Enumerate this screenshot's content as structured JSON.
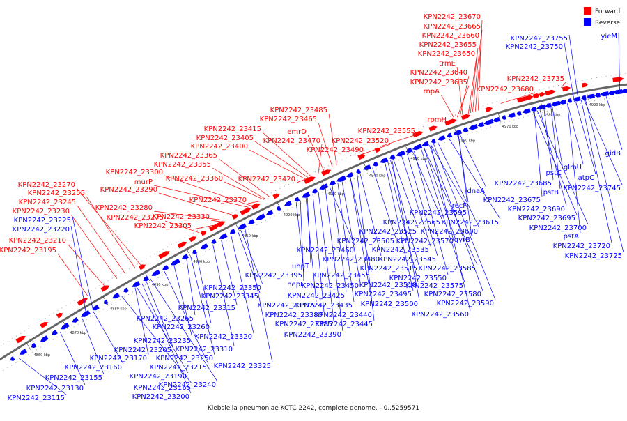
{
  "colors": {
    "forward": "#ff0000",
    "reverse": "#0000ff",
    "axis": "#555555",
    "text": "#111111",
    "background": "#ffffff"
  },
  "legend": {
    "forward_label": "Forward",
    "reverse_label": "Reverse"
  },
  "caption": "Klebsiella pneumoniae KCTC 2242, complete genome. - 0..5259571",
  "ticks": [
    "4860 kbp",
    "4870 kbp",
    "4880 kbp",
    "4890 kbp",
    "4900 kbp",
    "4910 kbp",
    "4920 kbp",
    "4930 kbp",
    "4940 kbp",
    "4950 kbp",
    "4960 kbp",
    "4970 kbp",
    "4980 kbp",
    "4990 kbp"
  ],
  "forward_genes": [
    "KPN2242_23670",
    "KPN2242_23665",
    "KPN2242_23660",
    "KPN2242_23655",
    "KPN2242_23650",
    "trmE",
    "KPN2242_23640",
    "KPN2242_23635",
    "rnpA",
    "KPN2242_23680",
    "KPN2242_23735",
    "rpmH",
    "KPN2242_23485",
    "KPN2242_23465",
    "KPN2242_23415",
    "emrD",
    "KPN2242_23405",
    "KPN2242_23470",
    "KPN2242_23400",
    "KPN2242_23490",
    "KPN2242_23555",
    "KPN2242_23520",
    "KPN2242_23365",
    "KPN2242_23355",
    "KPN2242_23300",
    "murP",
    "KPN2242_23360",
    "KPN2242_23420",
    "KPN2242_23270",
    "KPN2242_23290",
    "KPN2242_23255",
    "KPN2242_23245",
    "KPN2242_23280",
    "KPN2242_23230",
    "KPN2242_23275",
    "KPN2242_23370",
    "KPN2242_23330",
    "KPN2242_23305",
    "KPN2242_23210",
    "KPN2242_23195"
  ],
  "reverse_genes": [
    "KPN2242_23755",
    "KPN2242_23750",
    "yieM",
    "gidB",
    "KPN2242_23225",
    "KPN2242_23220",
    "dnaA",
    "KPN2242_23685",
    "KPN2242_23675",
    "KPN2242_23690",
    "pstC",
    "pstB",
    "glmU",
    "atpC",
    "KPN2242_23745",
    "KPN2242_23695",
    "KPN2242_23700",
    "pstA",
    "KPN2242_23720",
    "KPN2242_23725",
    "recF",
    "KPN2242_23595",
    "KPN2242_23615",
    "KPN2242_23565",
    "KPN2242_23600",
    "KPN2242_23525",
    "KPN2242_23505",
    "KPN2242_23570",
    "gyrB",
    "KPN2242_23460",
    "KPN2242_23535",
    "KPN2242_23480",
    "KPN2242_23545",
    "uhpT",
    "KPN2242_23515",
    "KPN2242_23585",
    "KPN2242_23395",
    "KPN2242_23455",
    "KPN2242_23550",
    "nepI",
    "KPN2242_23450",
    "KPN2242_23510",
    "KPN2242_23575",
    "KPN2242_23350",
    "KPN2242_23425",
    "KPN2242_23495",
    "KPN2242_23580",
    "KPN2242_23345",
    "KPN2242_23375",
    "KPN2242_23435",
    "KPN2242_23500",
    "KPN2242_23590",
    "KPN2242_23315",
    "KPN2242_23380",
    "KPN2242_23440",
    "KPN2242_23560",
    "KPN2242_23265",
    "KPN2242_23385",
    "KPN2242_23445",
    "KPN2242_23260",
    "KPN2242_23390",
    "KPN2242_23320",
    "KPN2242_23235",
    "KPN2242_23310",
    "KPN2242_23205",
    "KPN2242_23250",
    "KPN2242_23170",
    "KPN2242_23325",
    "KPN2242_23160",
    "KPN2242_23215",
    "KPN2242_23155",
    "KPN2242_23190",
    "KPN2242_23240",
    "KPN2242_23130",
    "KPN2242_23165",
    "KPN2242_23200",
    "KPN2242_23115"
  ]
}
